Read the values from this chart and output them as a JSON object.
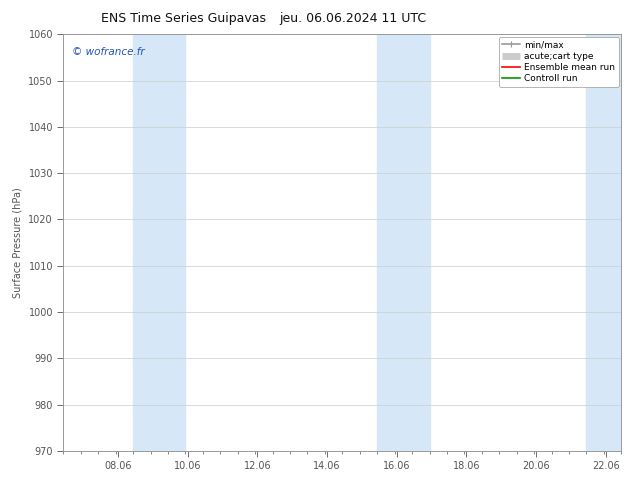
{
  "title_left": "ENS Time Series Guipavas",
  "title_right": "jeu. 06.06.2024 11 UTC",
  "ylabel": "Surface Pressure (hPa)",
  "ylim": [
    970,
    1060
  ],
  "yticks": [
    970,
    980,
    990,
    1000,
    1010,
    1020,
    1030,
    1040,
    1050,
    1060
  ],
  "xlim": [
    6.5,
    22.5
  ],
  "xticks": [
    8.06,
    10.06,
    12.06,
    14.06,
    16.06,
    18.06,
    20.06,
    22.06
  ],
  "xtick_labels": [
    "08.06",
    "10.06",
    "12.06",
    "14.06",
    "16.06",
    "18.06",
    "20.06",
    "22.06"
  ],
  "background_color": "#ffffff",
  "plot_bg_color": "#ffffff",
  "shaded_bands": [
    {
      "xmin": 8.5,
      "xmax": 10.0,
      "color": "#d6e8f7"
    },
    {
      "xmin": 15.5,
      "xmax": 17.0,
      "color": "#d6e8f7"
    },
    {
      "xmin": 21.5,
      "xmax": 22.5,
      "color": "#d6e8f7"
    }
  ],
  "watermark_text": "© wofrance.fr",
  "watermark_color": "#2255bb",
  "legend_entries": [
    {
      "label": "min/max",
      "color": "#999999",
      "lw": 1.2,
      "style": "errorbar"
    },
    {
      "label": "acute;cart type",
      "color": "#cccccc",
      "lw": 5,
      "style": "band"
    },
    {
      "label": "Ensemble mean run",
      "color": "#ff0000",
      "lw": 1.2,
      "style": "line"
    },
    {
      "label": "Controll run",
      "color": "#009900",
      "lw": 1.2,
      "style": "line"
    }
  ],
  "grid_color": "#cccccc",
  "spine_color": "#999999",
  "tick_color": "#555555",
  "title_fontsize": 9,
  "label_fontsize": 7,
  "tick_fontsize": 7,
  "legend_fontsize": 6.5,
  "watermark_fontsize": 7.5
}
